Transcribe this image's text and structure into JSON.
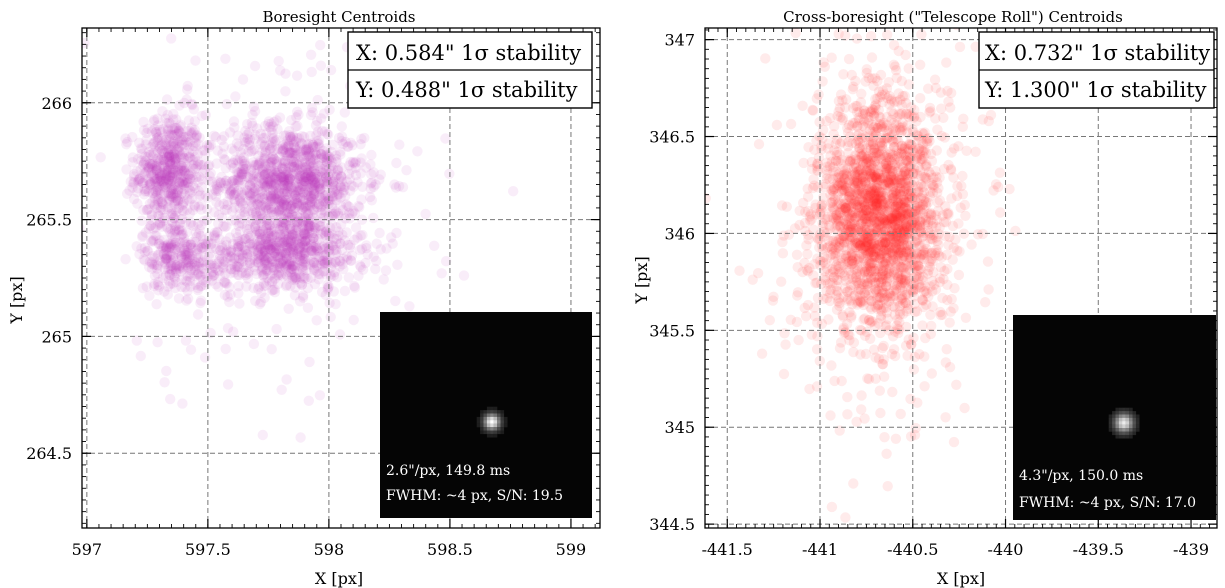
{
  "chart_data": [
    {
      "type": "scatter",
      "title": "Boresight Centroids",
      "xlabel": "X [px]",
      "ylabel": "Y [px]",
      "xlim": [
        596.98,
        599.12
      ],
      "ylim": [
        264.18,
        266.32
      ],
      "xticks": [
        597,
        597.5,
        598,
        598.5,
        599
      ],
      "xtick_labels": [
        "597",
        "597.5",
        "598",
        "598.5",
        "599"
      ],
      "yticks": [
        264.5,
        265,
        265.5,
        266
      ],
      "ytick_labels": [
        "264.5",
        "265",
        "265.5",
        "266"
      ],
      "grid": true,
      "point_color": "#bb33bb",
      "stats": {
        "x_text": "X: 0.584\" 1σ stability",
        "y_text": "Y: 0.488\" 1σ stability"
      },
      "clusters": [
        {
          "cx": 597.34,
          "cy": 265.71,
          "sx": 0.07,
          "sy": 0.12,
          "n": 520
        },
        {
          "cx": 597.84,
          "cy": 265.66,
          "sx": 0.15,
          "sy": 0.12,
          "n": 1050
        },
        {
          "cx": 597.37,
          "cy": 265.35,
          "sx": 0.07,
          "sy": 0.08,
          "n": 260
        },
        {
          "cx": 597.82,
          "cy": 265.35,
          "sx": 0.16,
          "sy": 0.08,
          "n": 640
        },
        {
          "cx": 597.7,
          "cy": 265.55,
          "sx": 0.35,
          "sy": 0.4,
          "n": 230
        }
      ],
      "inset": {
        "line1": "2.6\"/px, 149.8 ms",
        "line2": "FWHM: ~4 px, S/N: 19.5"
      }
    },
    {
      "type": "scatter",
      "title": "Cross-boresight (\"Telescope Roll\") Centroids",
      "xlabel": "X [px]",
      "ylabel": "Y [px]",
      "xlim": [
        -441.62,
        -438.86
      ],
      "ylim": [
        344.48,
        347.06
      ],
      "xticks": [
        -441.5,
        -441,
        -440.5,
        -440,
        -439.5,
        -439
      ],
      "xtick_labels": [
        "-441.5",
        "-441",
        "-440.5",
        "-440",
        "-439.5",
        "-439"
      ],
      "yticks": [
        344.5,
        345,
        345.5,
        346,
        346.5,
        347
      ],
      "ytick_labels": [
        "344.5",
        "345",
        "345.5",
        "346",
        "346.5",
        "347"
      ],
      "grid": true,
      "point_color": "#ff2020",
      "stats": {
        "x_text": "X: 0.732\" 1σ stability",
        "y_text": "Y: 1.300\" 1σ stability"
      },
      "clusters": [
        {
          "cx": -440.68,
          "cy": 346.1,
          "sx": 0.17,
          "sy": 0.3,
          "n": 1900
        },
        {
          "cx": -440.68,
          "cy": 346.0,
          "sx": 0.3,
          "sy": 0.55,
          "n": 320
        }
      ],
      "inset": {
        "line1": "4.3\"/px, 150.0 ms",
        "line2": "FWHM: ~4 px, S/N: 17.0"
      }
    }
  ]
}
